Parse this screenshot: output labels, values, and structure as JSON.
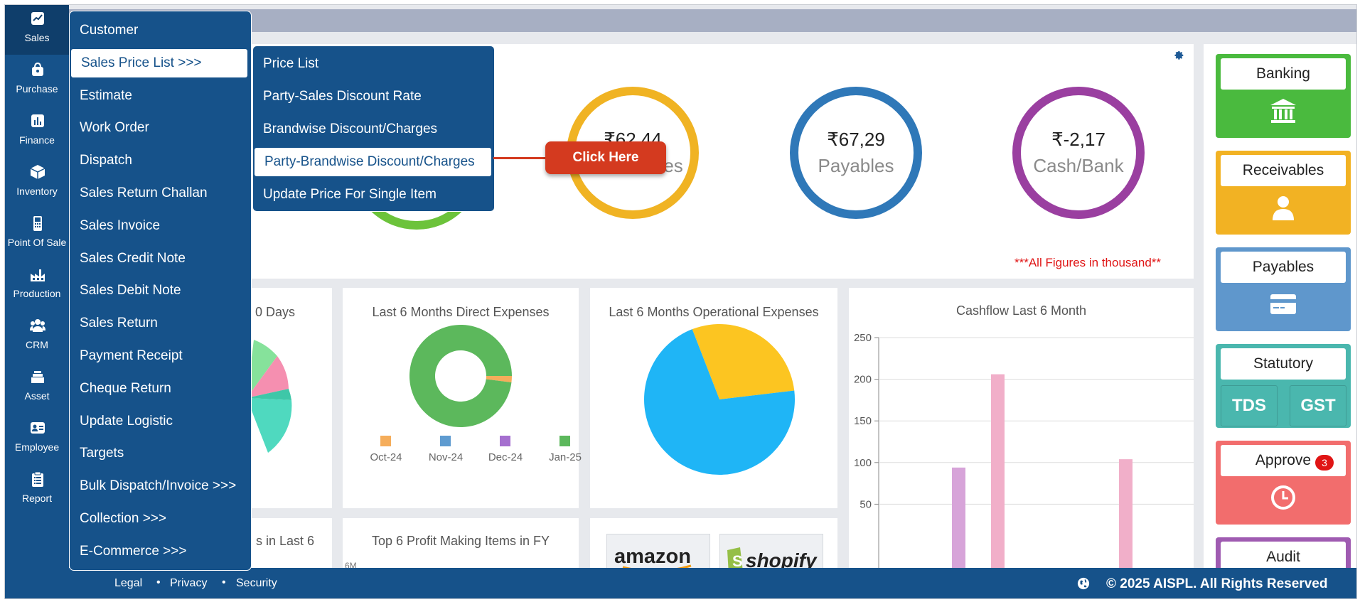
{
  "nav": {
    "items": [
      {
        "label": "Sales",
        "icon": "chart-line-icon",
        "active": true
      },
      {
        "label": "Purchase",
        "icon": "shopping-bag-icon"
      },
      {
        "label": "Finance",
        "icon": "finance-chart-icon"
      },
      {
        "label": "Inventory",
        "icon": "box-icon"
      },
      {
        "label": "Point Of Sale",
        "icon": "pos-terminal-icon"
      },
      {
        "label": "Production",
        "icon": "factory-icon"
      },
      {
        "label": "CRM",
        "icon": "users-icon"
      },
      {
        "label": "Asset",
        "icon": "stack-icon"
      },
      {
        "label": "Employee",
        "icon": "id-card-icon"
      },
      {
        "label": "Report",
        "icon": "clipboard-icon"
      }
    ]
  },
  "sales_menu": {
    "items": [
      "Customer",
      "Sales Price List >>>",
      "Estimate",
      "Work Order",
      "Dispatch",
      "Sales Return Challan",
      "Sales Invoice",
      "Sales Credit Note",
      "Sales Debit Note",
      "Sales Return",
      "Payment Receipt",
      "Cheque Return",
      "Update Logistic",
      "Targets",
      "Bulk Dispatch/Invoice >>>",
      "Collection >>>",
      "E-Commerce >>>"
    ],
    "selected_index": 1
  },
  "price_list_submenu": {
    "items": [
      "Price List",
      "Party-Sales Discount Rate",
      "Brandwise Discount/Charges",
      "Party-Brandwise Discount/Charges",
      "Update Price For Single Item"
    ],
    "selected_index": 3
  },
  "callout": {
    "label": "Click Here"
  },
  "summary": {
    "rings": [
      {
        "amount": "₹62,44",
        "label": "Receivables",
        "color": "#f0b323"
      },
      {
        "amount": "₹67,29",
        "label": "Payables",
        "color": "#2f78b8"
      },
      {
        "amount": "₹-2,17",
        "label": "Cash/Bank",
        "color": "#9a3fa0"
      }
    ],
    "note": "***All Figures in thousand**"
  },
  "cards": {
    "days_title": "0 Days",
    "direct_expenses_title": "Last 6 Months Direct Expenses",
    "operational_expenses_title": "Last 6 Months Operational Expenses",
    "cashflow_title": "Cashflow Last 6 Month",
    "last6_title": "s in Last 6",
    "profit_items_title": "Top 6 Profit Making Items in FY",
    "profit_axis_label": "6M"
  },
  "chart_data": [
    {
      "type": "pie",
      "title": "Last 6 Months Direct Expenses",
      "categories": [
        "Oct-24",
        "Nov-24",
        "Dec-24",
        "Jan-25"
      ],
      "colors": [
        "#f5ad5b",
        "#5e9bd0",
        "#a56fcf",
        "#5cb85c"
      ],
      "values": [
        2,
        0,
        0,
        98
      ],
      "donut": true
    },
    {
      "type": "pie",
      "title": "Last 6 Months Operational Expenses",
      "values": [
        29,
        71
      ],
      "colors": [
        "#fcc521",
        "#1fb5f6"
      ]
    },
    {
      "type": "bar",
      "title": "Cashflow Last 6 Month",
      "y_ticks": [
        250,
        200,
        150,
        100,
        50
      ],
      "ylim": [
        0,
        250
      ],
      "bars": [
        {
          "value": 94,
          "color": "#d7a4d9"
        },
        {
          "value": 206,
          "color": "#f1afc9"
        },
        {
          "value": 104,
          "color": "#f1afc9"
        }
      ]
    }
  ],
  "tiles": {
    "banking": "Banking",
    "receivables": "Receivables",
    "payables": "Payables",
    "statutory": "Statutory",
    "tds": "TDS",
    "gst": "GST",
    "approve": "Approve",
    "approve_badge": "3",
    "audit": "Audit"
  },
  "footer": {
    "legal": "Legal",
    "privacy": "Privacy",
    "security": "Security",
    "copyright": "© 2025 AISPL. All Rights Reserved"
  }
}
